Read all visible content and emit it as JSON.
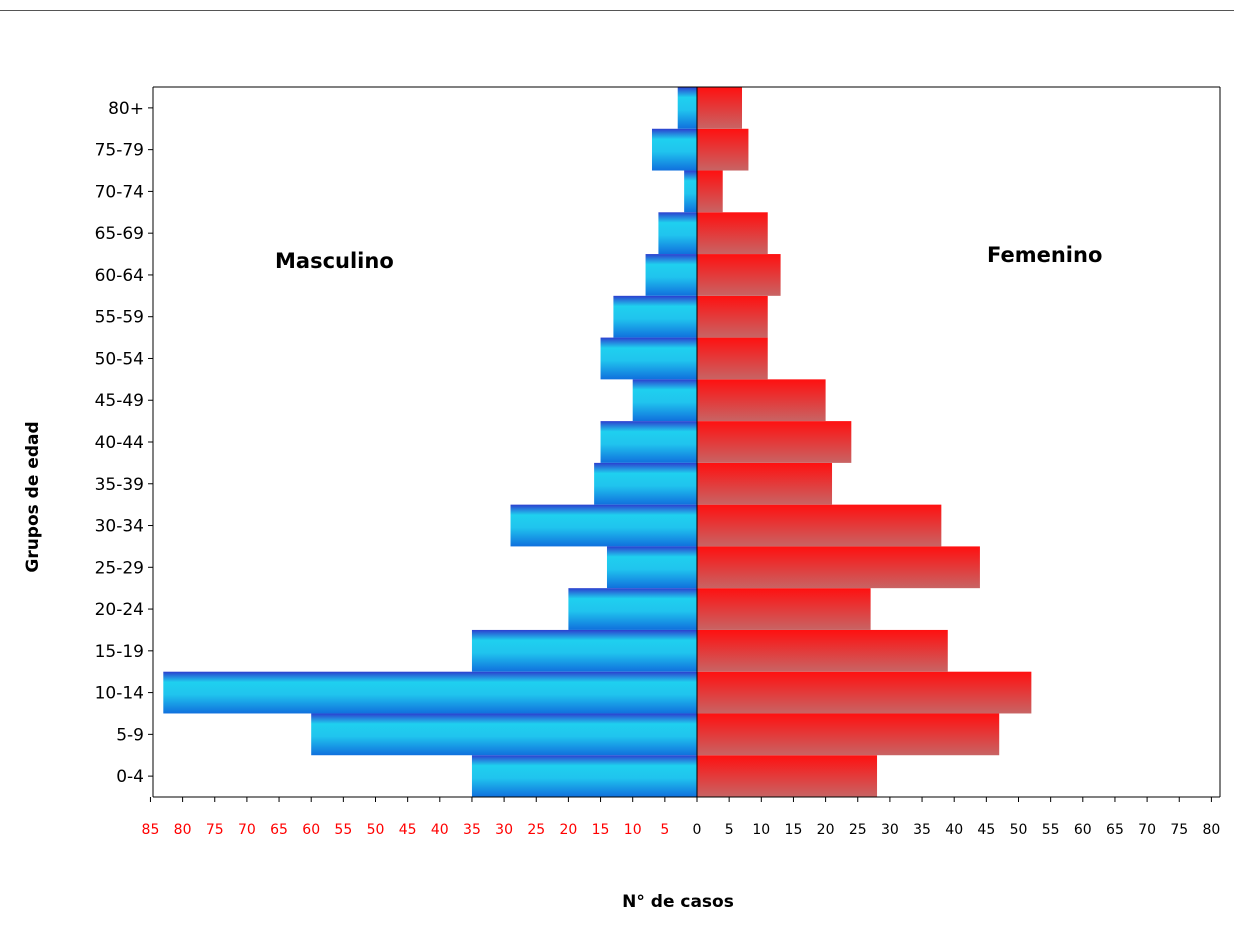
{
  "chart_data": {
    "type": "bar",
    "orientation": "horizontal",
    "layout": "population-pyramid",
    "categories": [
      "0-4",
      "5-9",
      "10-14",
      "15-19",
      "20-24",
      "25-29",
      "30-34",
      "35-39",
      "40-44",
      "45-49",
      "50-54",
      "55-59",
      "60-64",
      "65-69",
      "70-74",
      "75-79",
      "80+"
    ],
    "series": [
      {
        "name": "Masculino",
        "side": "left",
        "values": [
          35,
          60,
          83,
          35,
          20,
          14,
          29,
          16,
          15,
          10,
          15,
          13,
          8,
          6,
          2,
          7,
          3
        ]
      },
      {
        "name": "Femenino",
        "side": "right",
        "values": [
          28,
          47,
          52,
          39,
          27,
          44,
          38,
          21,
          24,
          20,
          11,
          11,
          13,
          11,
          4,
          8,
          7
        ]
      }
    ],
    "xlabel": "N° de casos",
    "ylabel": "Grupos de edad",
    "xlim_left": [
      0,
      85
    ],
    "xlim_right": [
      0,
      80
    ],
    "left_ticks": [
      "85",
      "80",
      "75",
      "70",
      "65",
      "60",
      "55",
      "50",
      "45",
      "40",
      "35",
      "30",
      "25",
      "20",
      "15",
      "10",
      "5"
    ],
    "right_ticks": [
      "0",
      "5",
      "10",
      "15",
      "20",
      "25",
      "30",
      "35",
      "40",
      "45",
      "50",
      "55",
      "60",
      "65",
      "70",
      "75",
      "80"
    ],
    "colors": {
      "male_light": "#1fd0ef",
      "male_dark": "#2c3fcf",
      "male_mid": "#1090e0",
      "female_top": "#ff1010",
      "female_bottom": "#c86464",
      "left_tick_color": "#ff0000",
      "right_tick_color": "#000000"
    },
    "grid": false
  }
}
